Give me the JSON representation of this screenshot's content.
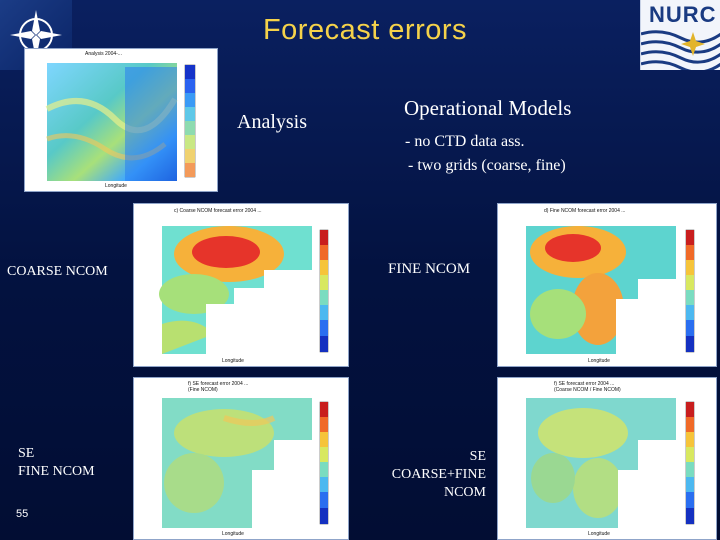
{
  "slide": {
    "title": "Forecast errors",
    "slide_number": "55",
    "logo_right_text": "NURC"
  },
  "labels": {
    "analysis": "Analysis",
    "operational_models": "Operational Models",
    "bullet_1": "- no CTD data ass.",
    "bullet_2": "- two grids (coarse, fine)",
    "coarse_ncom": "COARSE NCOM",
    "fine_ncom": "FINE NCOM",
    "se_fine_line1": "SE",
    "se_fine_line2": "FINE NCOM",
    "se_coarse_line1": "SE",
    "se_coarse_line2": "COARSE+FINE",
    "se_coarse_line3": "NCOM"
  },
  "panels": {
    "analysis": {
      "header": "Analysis 2004-...",
      "xlabel": "Longitude",
      "ylabel": "Latitude"
    },
    "coarse": {
      "header": "c) Coarse NCOM forecast error 2004 ...",
      "xlabel": "Longitude"
    },
    "fine": {
      "header": "d) Fine NCOM forecast error 2004 ...",
      "xlabel": "Longitude"
    },
    "se_fine": {
      "header": "f) SE forecast error 2004 ...",
      "subheader": "(Fine NCOM)",
      "xlabel": "Longitude"
    },
    "se_coarse": {
      "header": "f) SE forecast error 2004 ...",
      "subheader": "(Coarse NCOM / Fine NCOM)",
      "xlabel": "Longitude"
    }
  },
  "colors": {
    "background": "#031240",
    "title": "#f5d24a",
    "text": "#ffffff"
  }
}
